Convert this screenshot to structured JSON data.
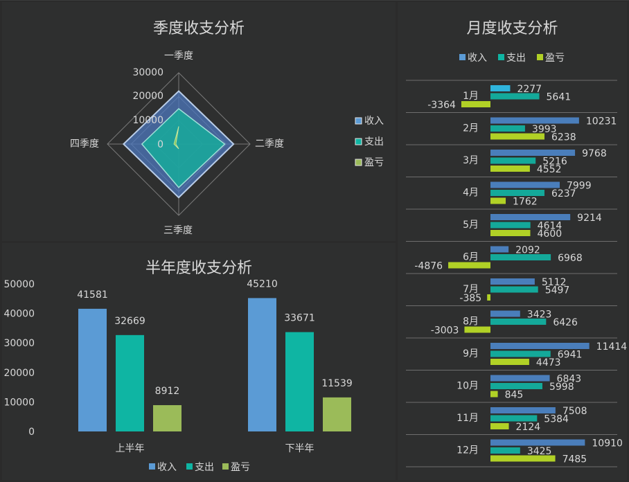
{
  "colors": {
    "income": "#5b9bd5",
    "expense": "#0fb5a3",
    "profit": "#9bbb59",
    "income_bar": "#4a7ebb",
    "expense_bar": "#14a99a",
    "profit_bar": "#b1d126",
    "month_jan_income": "#2fb5dd"
  },
  "quarter_panel": {
    "title": "季度收支分析",
    "legend": [
      "收入",
      "支出",
      "盈亏"
    ]
  },
  "half_panel": {
    "title": "半年度收支分析",
    "legend": [
      "收入",
      "支出",
      "盈亏"
    ]
  },
  "month_panel": {
    "title": "月度收支分析",
    "legend": [
      "收入",
      "支出",
      "盈亏"
    ]
  },
  "chart_data": [
    {
      "type": "radar",
      "title": "季度收支分析",
      "categories": [
        "一季度",
        "二季度",
        "三季度",
        "四季度"
      ],
      "axis_ticks": [
        "0",
        "10000",
        "20000",
        "30000"
      ],
      "rmax": 30000,
      "legend_position": "right",
      "series": [
        {
          "name": "收入",
          "values": [
            22276,
            23061,
            22500,
            23200
          ]
        },
        {
          "name": "支出",
          "values": [
            14850,
            19350,
            18300,
            15500
          ]
        },
        {
          "name": "盈亏",
          "values": [
            7426,
            -1200,
            2000,
            2000
          ]
        }
      ]
    },
    {
      "type": "bar",
      "title": "半年度收支分析",
      "categories": [
        "上半年",
        "下半年"
      ],
      "y_ticks": [
        "0",
        "10000",
        "20000",
        "30000",
        "40000",
        "50000"
      ],
      "ylim": [
        0,
        50000
      ],
      "legend_position": "bottom",
      "series": [
        {
          "name": "收入",
          "values": [
            41581,
            45210
          ]
        },
        {
          "name": "支出",
          "values": [
            32669,
            33671
          ]
        },
        {
          "name": "盈亏",
          "values": [
            8912,
            11539
          ]
        }
      ],
      "data_labels": [
        [
          "41581",
          "45210"
        ],
        [
          "32669",
          "33671"
        ],
        [
          "8912",
          "11539"
        ]
      ]
    },
    {
      "type": "bar",
      "orientation": "horizontal",
      "title": "月度收支分析",
      "categories": [
        "1月",
        "2月",
        "3月",
        "4月",
        "5月",
        "6月",
        "7月",
        "8月",
        "9月",
        "10月",
        "11月",
        "12月"
      ],
      "legend_position": "top",
      "series": [
        {
          "name": "收入",
          "values": [
            2277,
            10231,
            9768,
            7999,
            9214,
            2092,
            5112,
            3423,
            11414,
            6843,
            7508,
            10910
          ]
        },
        {
          "name": "支出",
          "values": [
            5641,
            3993,
            5216,
            6237,
            4614,
            6968,
            5497,
            6426,
            6941,
            5998,
            5384,
            3425
          ]
        },
        {
          "name": "盈亏",
          "values": [
            -3364,
            6238,
            4552,
            1762,
            4600,
            -4876,
            -385,
            -3003,
            4473,
            845,
            2124,
            7485
          ]
        }
      ],
      "data_labels": [
        [
          "2277",
          "10231",
          "9768",
          "7999",
          "9214",
          "2092",
          "5112",
          "3423",
          "11414",
          "6843",
          "7508",
          "10910"
        ],
        [
          "5641",
          "3993",
          "5216",
          "6237",
          "4614",
          "6968",
          "5497",
          "6426",
          "6941",
          "5998",
          "5384",
          "3425"
        ],
        [
          "-3364",
          "6238",
          "4552",
          "1762",
          "4600",
          "-4876",
          "-385",
          "-3003",
          "4473",
          "845",
          "2124",
          "7485"
        ]
      ]
    }
  ]
}
